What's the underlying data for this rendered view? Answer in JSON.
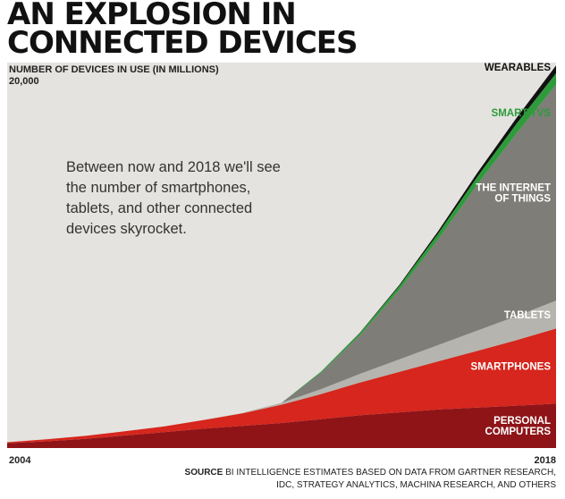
{
  "title_lines": [
    "AN EXPLOSION IN",
    "CONNECTED DEVICES"
  ],
  "annotation": "Between now and 2018 we'll see the number of smartphones, tablets, and other connected devices skyrocket.",
  "source": {
    "label": "SOURCE",
    "text": "BI INTELLIGENCE ESTIMATES BASED ON DATA FROM GARTNER RESEARCH, IDC, STRATEGY ANALYTICS, MACHINA RESEARCH, AND OTHERS"
  },
  "chart_data": {
    "type": "area",
    "stacked": true,
    "ylabel": "NUMBER OF DEVICES IN USE (IN MILLIONS)",
    "ylim": [
      0,
      20000
    ],
    "y_tick_label": "20,000",
    "x": [
      2004,
      2005,
      2006,
      2007,
      2008,
      2009,
      2010,
      2011,
      2012,
      2013,
      2014,
      2015,
      2016,
      2017,
      2018
    ],
    "x_tick_labels": [
      "2004",
      "2018"
    ],
    "series": [
      {
        "name": "PERSONAL COMPUTERS",
        "color": "#8e1418",
        "values": [
          250,
          350,
          480,
          650,
          820,
          1000,
          1150,
          1300,
          1500,
          1700,
          1850,
          2000,
          2100,
          2200,
          2300
        ]
      },
      {
        "name": "SMARTPHONES",
        "color": "#d6261d",
        "values": [
          50,
          100,
          150,
          220,
          300,
          450,
          650,
          950,
          1300,
          1700,
          2100,
          2500,
          2950,
          3400,
          3900
        ]
      },
      {
        "name": "TABLETS",
        "color": "#b5b4ae",
        "values": [
          0,
          0,
          0,
          0,
          0,
          0,
          20,
          100,
          250,
          450,
          650,
          850,
          1050,
          1250,
          1450
        ]
      },
      {
        "name": "THE INTERNET OF THINGS",
        "color": "#7e7d78",
        "values": [
          0,
          0,
          0,
          0,
          0,
          0,
          0,
          0,
          850,
          2000,
          3600,
          5500,
          7600,
          9500,
          11200
        ]
      },
      {
        "name": "SMART TVS",
        "color": "#2e9b3a",
        "values": [
          0,
          0,
          0,
          0,
          0,
          0,
          0,
          0,
          60,
          120,
          200,
          300,
          400,
          500,
          600
        ]
      },
      {
        "name": "WEARABLES",
        "color": "#111111",
        "values": [
          0,
          0,
          0,
          0,
          0,
          0,
          0,
          0,
          0,
          20,
          60,
          120,
          200,
          300,
          400
        ]
      }
    ],
    "background_color": "#e4e3df",
    "label_colors": {
      "light": "#ffffff",
      "dark": "#111111",
      "green": "#2e9b3a"
    }
  }
}
